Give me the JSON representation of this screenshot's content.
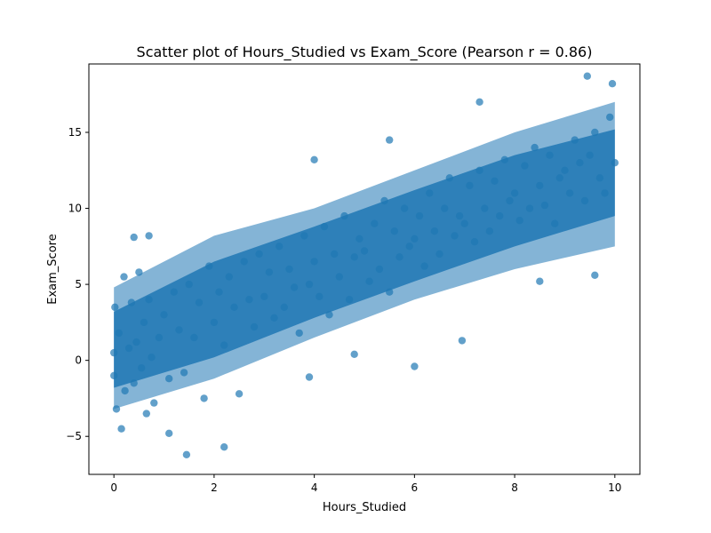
{
  "chart_data": {
    "type": "scatter",
    "title": "Scatter plot of Hours_Studied vs Exam_Score (Pearson r = 0.86)",
    "xlabel": "Hours_Studied",
    "ylabel": "Exam_Score",
    "xlim": [
      -0.5,
      10.5
    ],
    "ylim": [
      -7.5,
      19.5
    ],
    "xticks": [
      0,
      2,
      4,
      6,
      8,
      10
    ],
    "yticks": [
      -5,
      0,
      5,
      10,
      15
    ],
    "xtick_labels": [
      "0",
      "2",
      "4",
      "6",
      "8",
      "10"
    ],
    "ytick_labels": [
      "−5",
      "0",
      "5",
      "10",
      "15"
    ],
    "grid": false,
    "legend": "none",
    "color": "#1f77b4",
    "alpha": 0.7,
    "series": [
      {
        "x": [
          0.0,
          0.0,
          0.02,
          0.05,
          0.1,
          0.15,
          0.2,
          0.22,
          0.3,
          0.35,
          0.4,
          0.45,
          0.5,
          0.55,
          0.6,
          0.65,
          0.7,
          0.75,
          0.8,
          0.9,
          1.0,
          1.1,
          1.2,
          1.3,
          1.4,
          1.5,
          1.6,
          1.7,
          1.8,
          1.9,
          2.0,
          2.1,
          2.2,
          2.3,
          2.4,
          2.5,
          2.6,
          2.7,
          2.8,
          2.9,
          3.0,
          3.1,
          3.2,
          3.3,
          3.4,
          3.5,
          3.6,
          3.7,
          3.8,
          3.9,
          4.0,
          4.1,
          4.2,
          4.3,
          4.4,
          4.5,
          4.6,
          4.7,
          4.8,
          4.9,
          5.0,
          5.1,
          5.2,
          5.3,
          5.4,
          5.5,
          5.6,
          5.7,
          5.8,
          5.9,
          6.0,
          6.1,
          6.2,
          6.3,
          6.4,
          6.5,
          6.6,
          6.7,
          6.8,
          6.9,
          7.0,
          7.1,
          7.2,
          7.3,
          7.4,
          7.5,
          7.6,
          7.7,
          7.8,
          7.9,
          8.0,
          8.1,
          8.2,
          8.3,
          8.4,
          8.5,
          8.6,
          8.7,
          8.8,
          8.9,
          9.0,
          9.1,
          9.2,
          9.3,
          9.4,
          9.5,
          9.6,
          9.7,
          9.8,
          9.9,
          10.0,
          0.7,
          1.45,
          2.2,
          4.0,
          5.5,
          6.0,
          6.95,
          7.3,
          8.5,
          9.45,
          9.6,
          9.95,
          0.4,
          1.1,
          3.9,
          4.8
        ],
        "y": [
          0.5,
          -1.0,
          3.5,
          -3.2,
          1.8,
          -4.5,
          5.5,
          -2.0,
          0.8,
          3.8,
          -1.5,
          1.2,
          5.8,
          -0.5,
          2.5,
          -3.5,
          4.0,
          0.2,
          -2.8,
          1.5,
          3.0,
          -1.2,
          4.5,
          2.0,
          -0.8,
          5.0,
          1.5,
          3.8,
          -2.5,
          6.2,
          2.5,
          4.5,
          1.0,
          5.5,
          3.5,
          -2.2,
          6.5,
          4.0,
          2.2,
          7.0,
          4.2,
          5.8,
          2.8,
          7.5,
          3.5,
          6.0,
          4.8,
          1.8,
          8.2,
          5.0,
          6.5,
          4.2,
          8.8,
          3.0,
          7.0,
          5.5,
          9.5,
          4.0,
          6.8,
          8.0,
          7.2,
          5.2,
          9.0,
          6.0,
          10.5,
          4.5,
          8.5,
          6.8,
          10.0,
          7.5,
          8.0,
          9.5,
          6.2,
          11.0,
          8.5,
          7.0,
          10.0,
          12.0,
          8.2,
          9.5,
          9.0,
          11.5,
          7.8,
          12.5,
          10.0,
          8.5,
          11.8,
          9.5,
          13.2,
          10.5,
          11.0,
          9.2,
          12.8,
          10.0,
          14.0,
          11.5,
          10.2,
          13.5,
          9.0,
          12.0,
          12.5,
          11.0,
          14.5,
          13.0,
          10.5,
          13.5,
          15.0,
          12.0,
          11.0,
          16.0,
          13.0,
          8.2,
          -6.2,
          -5.7,
          13.2,
          14.5,
          -0.4,
          1.3,
          17.0,
          5.2,
          18.7,
          5.6,
          18.2,
          8.1,
          -4.8,
          -1.1,
          0.4
        ]
      }
    ]
  }
}
